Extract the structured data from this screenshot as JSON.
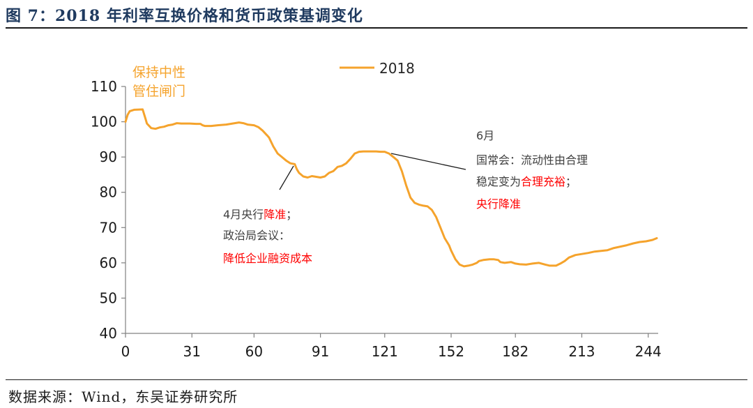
{
  "header": {
    "title": "图 7：2018 年利率互换价格和货币政策基调变化"
  },
  "footer": {
    "source": "数据来源：Wind，东吴证券研究所"
  },
  "colors": {
    "series": "#f5a32c",
    "highlight": "#ff0000",
    "text": "#404040",
    "axis": "#808080",
    "title": "#1f3a5f"
  },
  "chart_data": {
    "type": "line",
    "title": "",
    "xlabel": "",
    "ylabel": "",
    "xlim": [
      0,
      248
    ],
    "ylim": [
      40,
      110
    ],
    "grid": false,
    "legend_position": "top",
    "x_ticks": [
      0,
      31,
      60,
      91,
      121,
      152,
      182,
      213,
      244
    ],
    "y_ticks": [
      40,
      50,
      60,
      70,
      80,
      90,
      100,
      110
    ],
    "series": [
      {
        "name": "2018",
        "color": "#f5a32c",
        "points": [
          [
            0,
            100
          ],
          [
            1,
            102
          ],
          [
            2,
            103
          ],
          [
            4,
            103.4
          ],
          [
            8,
            103.5
          ],
          [
            9,
            101.5
          ],
          [
            10,
            99.5
          ],
          [
            12,
            98.2
          ],
          [
            14,
            98
          ],
          [
            16,
            98.4
          ],
          [
            18,
            98.6
          ],
          [
            20,
            99
          ],
          [
            22,
            99.2
          ],
          [
            24,
            99.6
          ],
          [
            26,
            99.5
          ],
          [
            30,
            99.5
          ],
          [
            33,
            99.4
          ],
          [
            35,
            99.4
          ],
          [
            36,
            99
          ],
          [
            37,
            98.8
          ],
          [
            40,
            98.8
          ],
          [
            43,
            99
          ],
          [
            47,
            99.2
          ],
          [
            50,
            99.5
          ],
          [
            53,
            99.8
          ],
          [
            55,
            99.6
          ],
          [
            57,
            99.2
          ],
          [
            60,
            99
          ],
          [
            62,
            98.5
          ],
          [
            64,
            97.5
          ],
          [
            66,
            96.2
          ],
          [
            67,
            95.5
          ],
          [
            69,
            93
          ],
          [
            71,
            91
          ],
          [
            73,
            90
          ],
          [
            75,
            89
          ],
          [
            77,
            88.2
          ],
          [
            79,
            88
          ],
          [
            80,
            86.5
          ],
          [
            81,
            85.5
          ],
          [
            83,
            84.5
          ],
          [
            85,
            84.2
          ],
          [
            87,
            84.6
          ],
          [
            89,
            84.4
          ],
          [
            91,
            84.2
          ],
          [
            93,
            84.5
          ],
          [
            95,
            85.5
          ],
          [
            97,
            86
          ],
          [
            99,
            87.2
          ],
          [
            101,
            87.5
          ],
          [
            103,
            88.2
          ],
          [
            105,
            89.5
          ],
          [
            107,
            91
          ],
          [
            109,
            91.5
          ],
          [
            111,
            91.6
          ],
          [
            113,
            91.6
          ],
          [
            115,
            91.6
          ],
          [
            117,
            91.6
          ],
          [
            119,
            91.5
          ],
          [
            121,
            91.5
          ],
          [
            123,
            91
          ],
          [
            125,
            90
          ],
          [
            127,
            89
          ],
          [
            129,
            86
          ],
          [
            131,
            82
          ],
          [
            133,
            78.5
          ],
          [
            135,
            77
          ],
          [
            137,
            76.5
          ],
          [
            139,
            76.2
          ],
          [
            141,
            76
          ],
          [
            143,
            75
          ],
          [
            145,
            73
          ],
          [
            147,
            70
          ],
          [
            149,
            67
          ],
          [
            151,
            65
          ],
          [
            152,
            63.5
          ],
          [
            154,
            61
          ],
          [
            156,
            59.5
          ],
          [
            158,
            59
          ],
          [
            160,
            59.2
          ],
          [
            162,
            59.5
          ],
          [
            164,
            60
          ],
          [
            165,
            60.5
          ],
          [
            167,
            60.8
          ],
          [
            170,
            61
          ],
          [
            172,
            61
          ],
          [
            174,
            60.8
          ],
          [
            175,
            60.2
          ],
          [
            177,
            60
          ],
          [
            180,
            60.2
          ],
          [
            182,
            59.8
          ],
          [
            184,
            59.6
          ],
          [
            187,
            59.5
          ],
          [
            190,
            59.8
          ],
          [
            193,
            60
          ],
          [
            196,
            59.5
          ],
          [
            198,
            59.2
          ],
          [
            201,
            59.2
          ],
          [
            203,
            59.8
          ],
          [
            205,
            60.5
          ],
          [
            207,
            61.5
          ],
          [
            210,
            62.2
          ],
          [
            213,
            62.5
          ],
          [
            216,
            62.8
          ],
          [
            219,
            63.2
          ],
          [
            222,
            63.4
          ],
          [
            225,
            63.6
          ],
          [
            228,
            64.2
          ],
          [
            231,
            64.6
          ],
          [
            234,
            65
          ],
          [
            237,
            65.5
          ],
          [
            240,
            65.9
          ],
          [
            243,
            66.1
          ],
          [
            246,
            66.5
          ],
          [
            248,
            67
          ]
        ]
      }
    ],
    "annotations": [
      {
        "lines": [
          "保持中性",
          "管住闸门"
        ]
      },
      {
        "lines": [
          "4月央行降准；",
          "政治局会议：",
          "降低企业融资成本"
        ]
      },
      {
        "lines": [
          "6月",
          "国常会：流动性由合理",
          "稳定变为合理充裕；",
          "央行降准"
        ]
      }
    ]
  }
}
